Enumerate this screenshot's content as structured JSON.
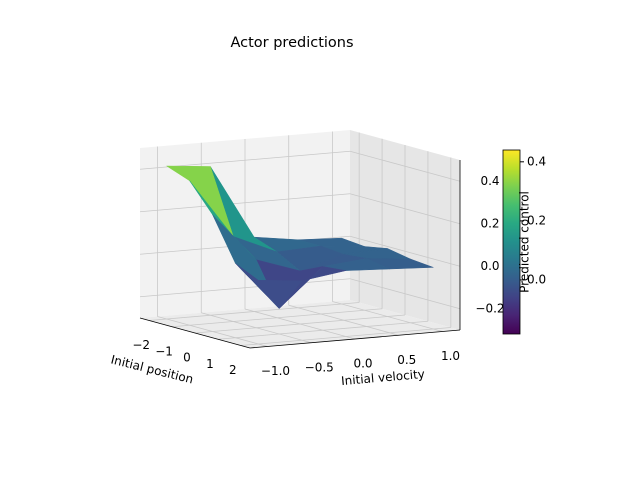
{
  "chart_data": {
    "type": "surface3d",
    "title": "Actor predictions",
    "xlabel": "Initial position",
    "ylabel": "Initial velocity",
    "colorbar_label": "Predicted control",
    "colormap": "viridis",
    "x": [
      -2,
      -1,
      0,
      1,
      2
    ],
    "y": [
      -1.0,
      -0.5,
      0.0,
      0.5,
      1.0
    ],
    "z": [
      [
        0.42,
        0.4,
        0.05,
        0.02,
        0.01
      ],
      [
        0.38,
        0.1,
        0.01,
        0.02,
        0.0
      ],
      [
        0.25,
        0.02,
        -0.05,
        0.01,
        0.02
      ],
      [
        0.05,
        -0.18,
        0.0,
        0.02,
        0.0
      ],
      [
        0.0,
        -0.02,
        0.01,
        0.0,
        -0.01
      ]
    ],
    "xlim": [
      -2.4,
      2.4
    ],
    "ylim": [
      -1.2,
      1.2
    ],
    "zlim": [
      -0.3,
      0.5
    ],
    "xticks": [
      {
        "value": -2,
        "label": "−2"
      },
      {
        "value": -1,
        "label": "−1"
      },
      0,
      1,
      2
    ],
    "yticks": [
      {
        "value": -1.0,
        "label": "−1.0"
      },
      {
        "value": -0.5,
        "label": "−0.5"
      },
      {
        "value": 0.0,
        "label": "0.0"
      },
      {
        "value": 0.5,
        "label": "0.5"
      },
      {
        "value": 1.0,
        "label": "1.0"
      }
    ],
    "zticks": [
      {
        "value": -0.2,
        "label": "−0.2"
      },
      {
        "value": 0.0,
        "label": "0.0"
      },
      {
        "value": 0.2,
        "label": "0.2"
      },
      {
        "value": 0.4,
        "label": "0.4"
      }
    ],
    "clim": [
      -0.183,
      0.44
    ],
    "cticks": [
      {
        "value": 0.0,
        "label": "0.0"
      },
      {
        "value": 0.2,
        "label": "0.2"
      },
      {
        "value": 0.4,
        "label": "0.4"
      }
    ],
    "grid": true
  }
}
